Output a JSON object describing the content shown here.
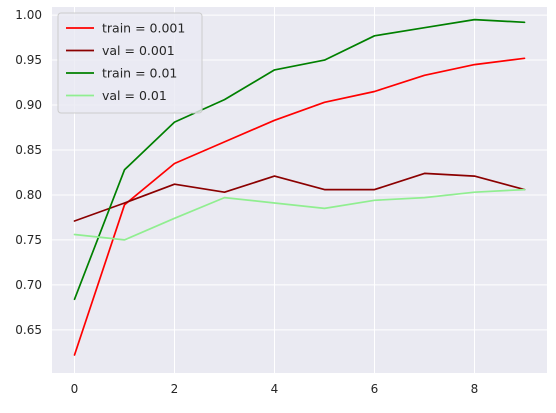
{
  "chart_data": {
    "type": "line",
    "title": "",
    "xlabel": "",
    "ylabel": "",
    "x": [
      0,
      1,
      2,
      3,
      4,
      5,
      6,
      7,
      8,
      9
    ],
    "xlim": [
      -0.45,
      9.45
    ],
    "ylim": [
      0.602,
      1.009
    ],
    "xticks": [
      0,
      2,
      4,
      6,
      8
    ],
    "xtick_labels": [
      "0",
      "2",
      "4",
      "6",
      "8"
    ],
    "yticks": [
      0.65,
      0.7,
      0.75,
      0.8,
      0.85,
      0.9,
      0.95,
      1.0
    ],
    "ytick_labels": [
      "0.65",
      "0.70",
      "0.75",
      "0.80",
      "0.85",
      "0.90",
      "0.95",
      "1.00"
    ],
    "grid": true,
    "legend_position": "top-left",
    "style": {
      "background": "#eaeaf2",
      "grid_color": "#ffffff"
    },
    "series": [
      {
        "name": "train = 0.001",
        "color": "#ff0000",
        "values": [
          0.622,
          0.789,
          0.835,
          0.859,
          0.883,
          0.903,
          0.915,
          0.933,
          0.945,
          0.952
        ]
      },
      {
        "name": "val = 0.001",
        "color": "#8b0000",
        "values": [
          0.771,
          0.791,
          0.812,
          0.803,
          0.821,
          0.806,
          0.806,
          0.824,
          0.821,
          0.806
        ]
      },
      {
        "name": "train = 0.01",
        "color": "#008000",
        "values": [
          0.684,
          0.828,
          0.881,
          0.906,
          0.939,
          0.95,
          0.977,
          0.986,
          0.995,
          0.992
        ]
      },
      {
        "name": "val = 0.01",
        "color": "#90ee90",
        "values": [
          0.756,
          0.75,
          0.774,
          0.797,
          0.791,
          0.785,
          0.794,
          0.797,
          0.803,
          0.806
        ]
      }
    ]
  }
}
